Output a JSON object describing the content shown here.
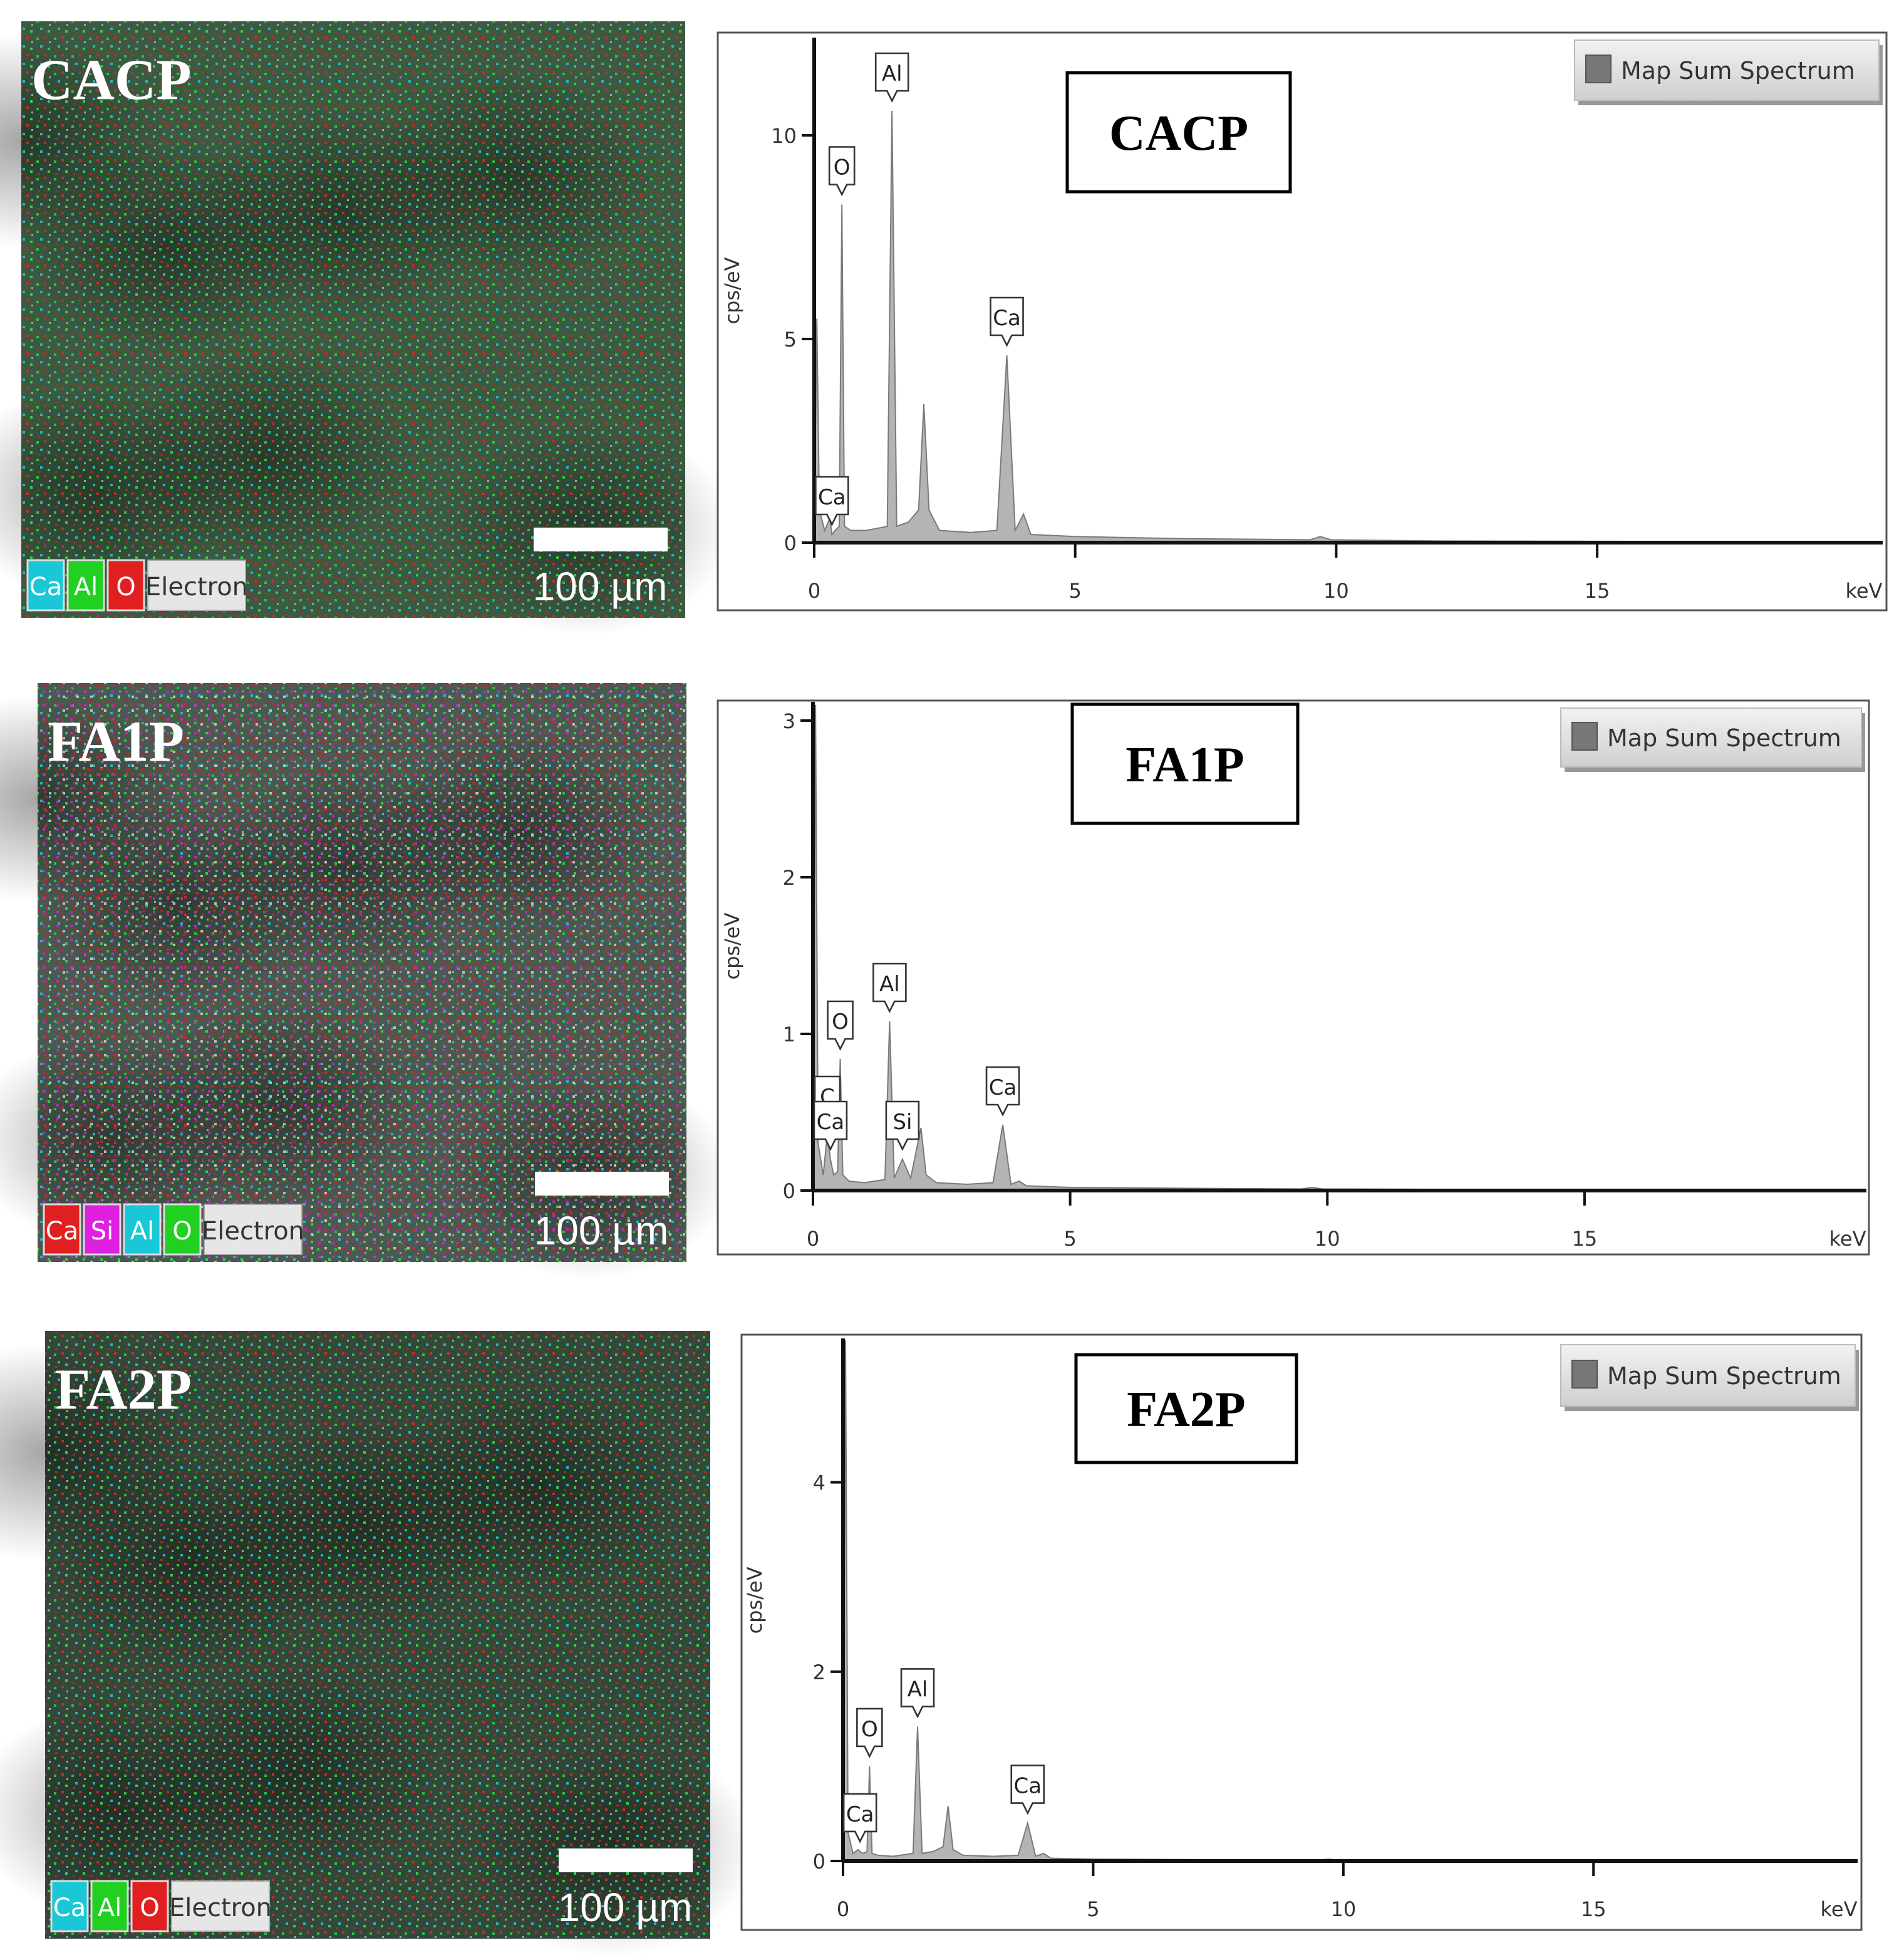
{
  "maps": [
    {
      "label": "CACP",
      "elements": [
        {
          "name": "Ca",
          "color": "#19c7d6"
        },
        {
          "name": "Al",
          "color": "#22d022"
        },
        {
          "name": "O",
          "color": "#e02020"
        }
      ],
      "electron": "Electron",
      "scale": "100 µm"
    },
    {
      "label": "FA1P",
      "elements": [
        {
          "name": "Ca",
          "color": "#e02020"
        },
        {
          "name": "Si",
          "color": "#e020e0"
        },
        {
          "name": "Al",
          "color": "#19c7d6"
        },
        {
          "name": "O",
          "color": "#22d022"
        }
      ],
      "electron": "Electron",
      "scale": "100 µm"
    },
    {
      "label": "FA2P",
      "elements": [
        {
          "name": "Ca",
          "color": "#19c7d6"
        },
        {
          "name": "Al",
          "color": "#22d022"
        },
        {
          "name": "O",
          "color": "#e02020"
        }
      ],
      "electron": "Electron",
      "scale": "100 µm"
    }
  ],
  "chart_data": [
    {
      "type": "area",
      "title": "CACP",
      "xlabel": "keV",
      "ylabel": "cps/eV",
      "xlim": [
        0,
        20.47
      ],
      "ylim": [
        0,
        12.4
      ],
      "xticks": [
        0,
        5,
        10,
        15
      ],
      "yticks": [
        0,
        5,
        10
      ],
      "x": [
        0,
        0.05,
        0.1,
        0.2,
        0.3,
        0.34,
        0.4,
        0.48,
        0.53,
        0.58,
        0.7,
        1.0,
        1.4,
        1.49,
        1.58,
        1.8,
        2.0,
        2.1,
        2.2,
        2.4,
        3.0,
        3.5,
        3.69,
        3.85,
        4.01,
        4.15,
        5,
        7,
        9.5,
        9.7,
        9.9,
        12,
        20.4
      ],
      "series": [
        {
          "name": "Map Sum Spectrum",
          "color": "#b4b4b4",
          "values": [
            0,
            5.5,
            0.8,
            0.3,
            0.6,
            0.2,
            0.3,
            0.4,
            8.3,
            0.4,
            0.3,
            0.3,
            0.4,
            10.6,
            0.4,
            0.5,
            0.8,
            3.4,
            0.8,
            0.3,
            0.25,
            0.3,
            4.6,
            0.3,
            0.7,
            0.2,
            0.15,
            0.1,
            0.07,
            0.15,
            0.07,
            0.04,
            0.02
          ]
        }
      ],
      "annotations": [
        {
          "text": "Ca",
          "x": 0.34,
          "y": 0.2
        },
        {
          "text": "O",
          "x": 0.53,
          "y": 8.3
        },
        {
          "text": "Al",
          "x": 1.49,
          "y": 10.6
        },
        {
          "text": "Ca",
          "x": 3.69,
          "y": 4.6
        }
      ]
    },
    {
      "type": "area",
      "title": "FA1P",
      "xlabel": "keV",
      "ylabel": "cps/eV",
      "xlim": [
        0,
        20.48
      ],
      "ylim": [
        0,
        3.12
      ],
      "xticks": [
        0,
        5,
        10,
        15
      ],
      "yticks": [
        0,
        1,
        2,
        3
      ],
      "x": [
        0,
        0.05,
        0.1,
        0.2,
        0.28,
        0.34,
        0.4,
        0.48,
        0.53,
        0.58,
        0.7,
        1.0,
        1.4,
        1.49,
        1.58,
        1.74,
        1.9,
        2.1,
        2.2,
        2.4,
        3.0,
        3.5,
        3.69,
        3.85,
        4.01,
        4.15,
        5,
        7,
        9.5,
        9.7,
        9.9,
        12,
        20.4
      ],
      "series": [
        {
          "name": "Map Sum Spectrum",
          "color": "#b4b4b4",
          "values": [
            0,
            3.1,
            0.3,
            0.1,
            0.36,
            0.2,
            0.1,
            0.12,
            0.84,
            0.1,
            0.06,
            0.05,
            0.07,
            1.08,
            0.08,
            0.2,
            0.08,
            0.4,
            0.1,
            0.05,
            0.04,
            0.05,
            0.42,
            0.04,
            0.06,
            0.03,
            0.02,
            0.015,
            0.01,
            0.02,
            0.01,
            0.008,
            0.005
          ]
        }
      ],
      "annotations": [
        {
          "text": "C",
          "x": 0.28,
          "y": 0.36
        },
        {
          "text": "Ca",
          "x": 0.34,
          "y": 0.2
        },
        {
          "text": "O",
          "x": 0.53,
          "y": 0.84
        },
        {
          "text": "Al",
          "x": 1.49,
          "y": 1.08
        },
        {
          "text": "Si",
          "x": 1.74,
          "y": 0.2
        },
        {
          "text": "Ca",
          "x": 3.69,
          "y": 0.42
        }
      ]
    },
    {
      "type": "area",
      "title": "FA2P",
      "xlabel": "keV",
      "ylabel": "cps/eV",
      "xlim": [
        0,
        20.28
      ],
      "ylim": [
        0,
        5.52
      ],
      "xticks": [
        0,
        5,
        10,
        15
      ],
      "yticks": [
        0,
        2,
        4
      ],
      "x": [
        0,
        0.05,
        0.1,
        0.2,
        0.3,
        0.34,
        0.4,
        0.48,
        0.53,
        0.58,
        0.7,
        1.0,
        1.4,
        1.49,
        1.58,
        1.8,
        2.0,
        2.1,
        2.2,
        2.4,
        3.0,
        3.5,
        3.69,
        3.85,
        4.01,
        4.15,
        5,
        7,
        9.5,
        9.7,
        9.9,
        12,
        20.2
      ],
      "series": [
        {
          "name": "Map Sum Spectrum",
          "color": "#b4b4b4",
          "values": [
            0,
            5.5,
            0.3,
            0.08,
            0.12,
            0.1,
            0.08,
            0.1,
            1.0,
            0.08,
            0.06,
            0.05,
            0.08,
            1.42,
            0.08,
            0.1,
            0.15,
            0.58,
            0.12,
            0.06,
            0.05,
            0.06,
            0.4,
            0.05,
            0.08,
            0.03,
            0.02,
            0.015,
            0.01,
            0.02,
            0.01,
            0.008,
            0.005
          ]
        }
      ],
      "annotations": [
        {
          "text": "Ca",
          "x": 0.34,
          "y": 0.1
        },
        {
          "text": "O",
          "x": 0.53,
          "y": 1.0
        },
        {
          "text": "Al",
          "x": 1.49,
          "y": 1.42
        },
        {
          "text": "Ca",
          "x": 3.69,
          "y": 0.4
        }
      ]
    }
  ]
}
